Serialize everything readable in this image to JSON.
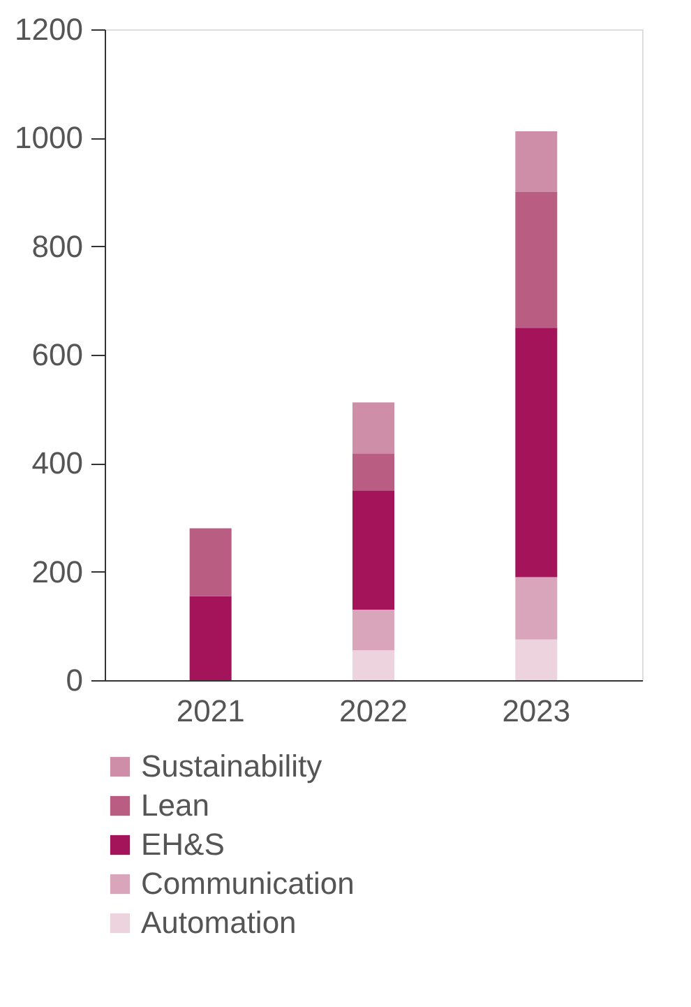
{
  "chart_data": {
    "type": "bar",
    "stacked": true,
    "categories": [
      "2021",
      "2022",
      "2023"
    ],
    "series": [
      {
        "name": "Automation",
        "color": "#ecd3dd",
        "values": [
          null,
          55,
          75
        ]
      },
      {
        "name": "Communication",
        "color": "#d9a5bb",
        "values": [
          null,
          75,
          115
        ]
      },
      {
        "name": "EH&S",
        "color": "#a3145a",
        "values": [
          155,
          220,
          460
        ]
      },
      {
        "name": "Lean",
        "color": "#b95d82",
        "values": [
          125,
          68,
          250
        ]
      },
      {
        "name": "Sustainability",
        "color": "#cf8ea8",
        "values": [
          null,
          94,
          112
        ]
      }
    ],
    "ylim": [
      0,
      1200
    ],
    "yticks": [
      0,
      200,
      400,
      600,
      800,
      1000,
      1200
    ],
    "grid": false,
    "legend": "bottom"
  }
}
